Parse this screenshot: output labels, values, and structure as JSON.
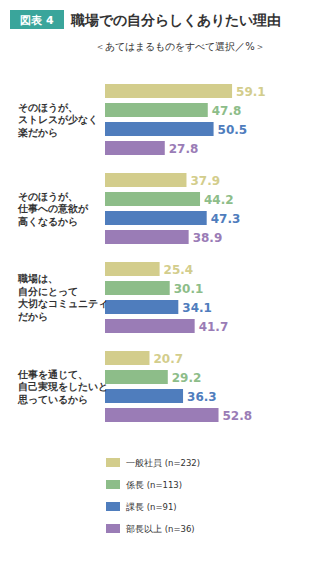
{
  "chart_data": {
    "type": "bar",
    "orientation": "horizontal",
    "title": "職場での自分らしくありたい理由",
    "subtitle": "＜あてはまるものをすべて選択／%＞",
    "annotations": [
      "図表 4"
    ],
    "categories": [
      "そのほうが、\nストレスが少なく\n楽だから",
      "そのほうが、\n仕事への意欲が\n高くなるから",
      "職場は、\n自分にとって\n大切なコミュニティ\nだから",
      "仕事を通じて、\n自己実現をしたいと\n思っているから"
    ],
    "series": [
      {
        "name": "一般社員 (n=232)",
        "color": "#d3cd8c",
        "values": [
          59.1,
          37.9,
          25.4,
          20.7
        ]
      },
      {
        "name": "係長 (n=113)",
        "color": "#8dbd89",
        "values": [
          47.8,
          44.2,
          30.1,
          29.2
        ]
      },
      {
        "name": "課長 (n=91)",
        "color": "#4f7dbd",
        "values": [
          50.5,
          47.3,
          34.1,
          36.3
        ]
      },
      {
        "name": "部長以上 (n=36)",
        "color": "#9a7cb6",
        "values": [
          27.8,
          38.9,
          41.7,
          52.8
        ]
      }
    ],
    "xlim": [
      0,
      60
    ],
    "data_labels": true,
    "tick_labels": false,
    "grid": false,
    "legend": "bottom"
  }
}
